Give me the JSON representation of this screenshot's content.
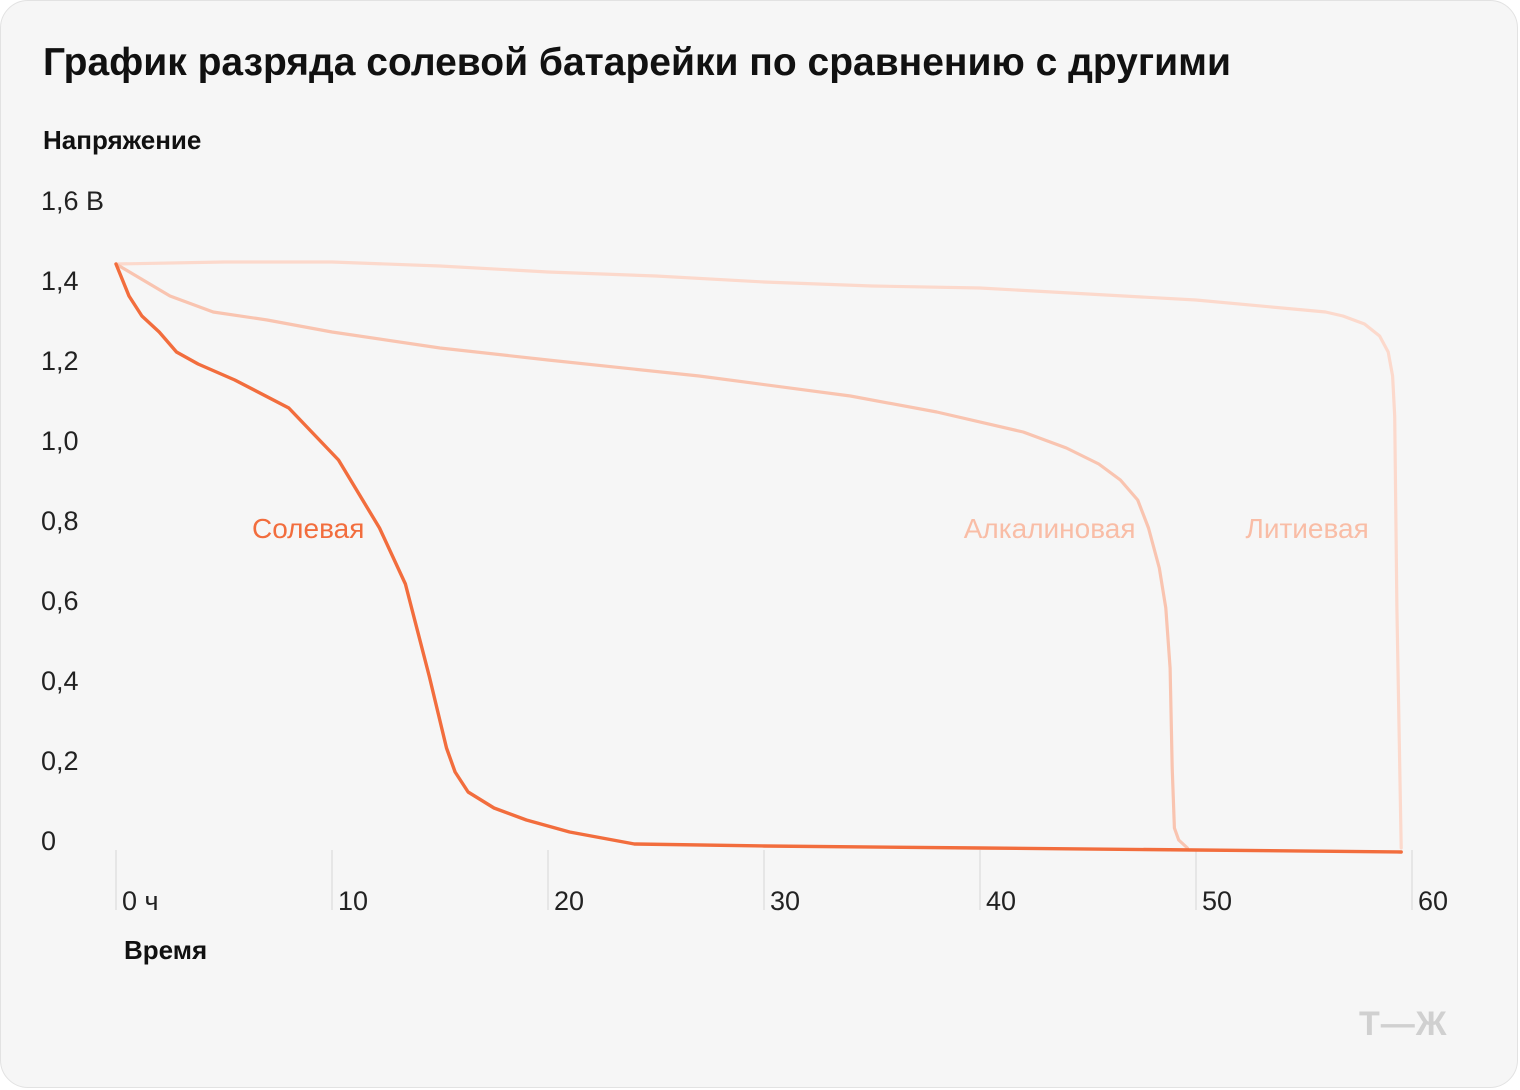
{
  "chart_data": {
    "type": "line",
    "title": "График разряда солевой батарейки по сравнению с другими",
    "ylabel": "Напряжение",
    "xlabel": "Время",
    "xlim": [
      0,
      60
    ],
    "ylim": [
      0,
      1.6
    ],
    "x_ticks": [
      {
        "value": 0,
        "label": "0 ч"
      },
      {
        "value": 10,
        "label": "10"
      },
      {
        "value": 20,
        "label": "20"
      },
      {
        "value": 30,
        "label": "30"
      },
      {
        "value": 40,
        "label": "40"
      },
      {
        "value": 50,
        "label": "50"
      },
      {
        "value": 60,
        "label": "60"
      }
    ],
    "y_ticks": [
      {
        "value": 0,
        "label": "0"
      },
      {
        "value": 0.2,
        "label": "0,2"
      },
      {
        "value": 0.4,
        "label": "0,4"
      },
      {
        "value": 0.6,
        "label": "0,6"
      },
      {
        "value": 0.8,
        "label": "0,8"
      },
      {
        "value": 1.0,
        "label": "1,0"
      },
      {
        "value": 1.2,
        "label": "1,2"
      },
      {
        "value": 1.4,
        "label": "1,4"
      },
      {
        "value": 1.6,
        "label": "1,6 В"
      }
    ],
    "grid": false,
    "series": [
      {
        "name": "Литиевая",
        "color": "#fcd9cc",
        "points": [
          [
            0,
            1.46
          ],
          [
            5,
            1.465
          ],
          [
            10,
            1.465
          ],
          [
            15,
            1.455
          ],
          [
            20,
            1.44
          ],
          [
            25,
            1.43
          ],
          [
            30,
            1.415
          ],
          [
            35,
            1.405
          ],
          [
            40,
            1.4
          ],
          [
            45,
            1.385
          ],
          [
            50,
            1.37
          ],
          [
            55,
            1.345
          ],
          [
            56,
            1.34
          ],
          [
            56.8,
            1.33
          ],
          [
            57.8,
            1.31
          ],
          [
            58.5,
            1.28
          ],
          [
            58.9,
            1.24
          ],
          [
            59.1,
            1.18
          ],
          [
            59.2,
            1.08
          ],
          [
            59.3,
            0.6
          ],
          [
            59.5,
            0.0
          ]
        ]
      },
      {
        "name": "Алкалиновая",
        "color": "#f9c4b0",
        "points": [
          [
            0,
            1.46
          ],
          [
            2.5,
            1.38
          ],
          [
            4.5,
            1.34
          ],
          [
            7,
            1.32
          ],
          [
            10,
            1.29
          ],
          [
            15,
            1.25
          ],
          [
            20,
            1.22
          ],
          [
            27,
            1.18
          ],
          [
            34,
            1.13
          ],
          [
            38,
            1.09
          ],
          [
            42,
            1.04
          ],
          [
            44,
            1.0
          ],
          [
            45.5,
            0.96
          ],
          [
            46.5,
            0.92
          ],
          [
            47.3,
            0.87
          ],
          [
            47.8,
            0.8
          ],
          [
            48.3,
            0.7
          ],
          [
            48.6,
            0.6
          ],
          [
            48.8,
            0.45
          ],
          [
            48.9,
            0.2
          ],
          [
            49.0,
            0.05
          ],
          [
            49.2,
            0.02
          ],
          [
            49.6,
            0.0
          ]
        ]
      },
      {
        "name": "Солевая",
        "color": "#f26d3d",
        "points": [
          [
            0,
            1.46
          ],
          [
            0.6,
            1.38
          ],
          [
            1.2,
            1.33
          ],
          [
            2,
            1.29
          ],
          [
            2.8,
            1.24
          ],
          [
            3.8,
            1.21
          ],
          [
            5.5,
            1.17
          ],
          [
            8,
            1.1
          ],
          [
            10.3,
            0.97
          ],
          [
            12.2,
            0.8
          ],
          [
            13.4,
            0.66
          ],
          [
            14.5,
            0.43
          ],
          [
            15.3,
            0.25
          ],
          [
            15.7,
            0.19
          ],
          [
            16.3,
            0.14
          ],
          [
            17.5,
            0.1
          ],
          [
            19,
            0.07
          ],
          [
            21,
            0.04
          ],
          [
            24,
            0.01
          ],
          [
            30,
            0.005
          ],
          [
            40,
            0.0
          ],
          [
            50,
            -0.005
          ],
          [
            59.5,
            -0.01
          ]
        ]
      }
    ],
    "annotations": [
      {
        "series": "Солевая",
        "text": "Солевая",
        "x": 11.5,
        "y": 0.8,
        "color": "#f26d3d"
      },
      {
        "series": "Алкалиновая",
        "text": "Алкалиновая",
        "x": 47.2,
        "y": 0.8,
        "color": "#f9bda6"
      },
      {
        "series": "Литиевая",
        "text": "Литиевая",
        "x": 58.0,
        "y": 0.8,
        "color": "#f9bda6"
      }
    ]
  },
  "logo_text": "Т—Ж"
}
